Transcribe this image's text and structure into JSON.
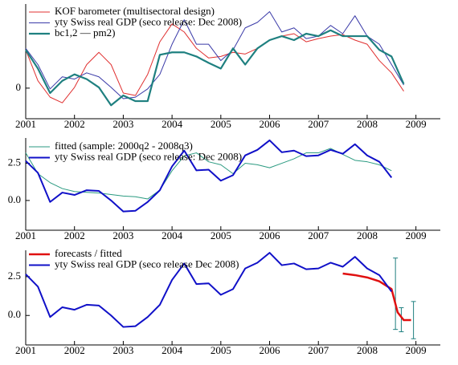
{
  "chart_data": [
    {
      "type": "line",
      "xlim": [
        2001,
        2009.5
      ],
      "xticks": [
        2001,
        2002,
        2003,
        2004,
        2005,
        2006,
        2007,
        2008,
        2009
      ],
      "ylim": [
        -2,
        5.5
      ],
      "yticks": [
        0
      ],
      "series": [
        {
          "name": "KOF barometer (multisectoral design)",
          "color": "#e03030",
          "line_width": 1,
          "x": [
            2001,
            2001.25,
            2001.5,
            2001.75,
            2002,
            2002.25,
            2002.5,
            2002.75,
            2003,
            2003.25,
            2003.5,
            2003.75,
            2004,
            2004.25,
            2004.5,
            2004.75,
            2005,
            2005.25,
            2005.5,
            2005.75,
            2006,
            2006.25,
            2006.5,
            2006.75,
            2007,
            2007.25,
            2007.5,
            2007.75,
            2008,
            2008.25,
            2008.5,
            2008.75
          ],
          "values": [
            2.5,
            0.48,
            -0.59,
            -0.96,
            0.05,
            1.54,
            2.34,
            1.54,
            -0.32,
            -0.48,
            0.9,
            3.03,
            4.2,
            3.67,
            2.6,
            1.97,
            2.07,
            2.34,
            2.23,
            2.6,
            3.14,
            3.4,
            3.56,
            3.03,
            3.24,
            3.4,
            3.5,
            3.14,
            2.87,
            1.8,
            1.0,
            -0.2
          ]
        },
        {
          "name": "yty Swiss real GDP (seco release: Dec 2008)",
          "color": "#3a3aa8",
          "line_width": 1,
          "x": [
            2001,
            2001.25,
            2001.5,
            2001.75,
            2002,
            2002.25,
            2002.5,
            2002.75,
            2003,
            2003.25,
            2003.5,
            2003.75,
            2004,
            2004.25,
            2004.5,
            2004.75,
            2005,
            2005.25,
            2005.5,
            2005.75,
            2006,
            2006.25,
            2006.5,
            2006.75,
            2007,
            2007.25,
            2007.5,
            2007.75,
            2008,
            2008.25,
            2008.5,
            2008.75
          ],
          "values": [
            2.6,
            1.54,
            -0.05,
            0.74,
            0.59,
            1.0,
            0.74,
            0.05,
            -0.69,
            -0.59,
            -0.05,
            0.9,
            2.87,
            4.47,
            2.87,
            2.87,
            1.8,
            2.5,
            3.94,
            4.3,
            5.0,
            3.67,
            3.94,
            3.24,
            3.4,
            4.1,
            3.56,
            4.73,
            3.4,
            2.87,
            1.54,
            0.2
          ]
        },
        {
          "name": "bc1,2 — pm2)",
          "color": "#1f8080",
          "line_width": 2.2,
          "x": [
            2001,
            2001.25,
            2001.5,
            2001.75,
            2002,
            2002.25,
            2002.5,
            2002.75,
            2003,
            2003.25,
            2003.5,
            2003.75,
            2004,
            2004.25,
            2004.5,
            2004.75,
            2005,
            2005.25,
            2005.5,
            2005.75,
            2006,
            2006.25,
            2006.5,
            2006.75,
            2007,
            2007.25,
            2007.5,
            2007.75,
            2008,
            2008.25,
            2008.5,
            2008.75
          ],
          "values": [
            2.5,
            1.28,
            -0.32,
            0.48,
            0.9,
            0.59,
            0.05,
            -1.12,
            -0.48,
            -0.85,
            -0.85,
            2.18,
            2.34,
            2.34,
            2.07,
            1.65,
            1.28,
            2.6,
            1.54,
            2.6,
            3.14,
            3.4,
            3.14,
            3.56,
            3.4,
            3.78,
            3.4,
            3.4,
            3.4,
            2.5,
            2.07,
            0.27
          ]
        }
      ]
    },
    {
      "type": "line",
      "xlim": [
        2001,
        2009.5
      ],
      "xticks": [
        2001,
        2002,
        2003,
        2004,
        2005,
        2006,
        2007,
        2008,
        2009
      ],
      "ylim": [
        -2,
        4.2
      ],
      "yticks": [
        {
          "value": 0,
          "label": "0.0"
        },
        {
          "value": 2.5,
          "label": "2.5"
        }
      ],
      "series": [
        {
          "name": "fitted (sample: 2000q2 - 2008q3)",
          "color": "#2a9a80",
          "line_width": 1,
          "x": [
            2001,
            2001.25,
            2001.5,
            2001.75,
            2002,
            2002.25,
            2002.5,
            2002.75,
            2003,
            2003.25,
            2003.5,
            2003.75,
            2004,
            2004.25,
            2004.5,
            2004.75,
            2005,
            2005.25,
            2005.5,
            2005.75,
            2006,
            2006.25,
            2006.5,
            2006.75,
            2007,
            2007.25,
            2007.5,
            2007.75,
            2008,
            2008.25,
            2008.5
          ],
          "values": [
            3.2,
            1.8,
            1.2,
            0.8,
            0.6,
            0.55,
            0.5,
            0.4,
            0.3,
            0.25,
            0.1,
            0.7,
            2.0,
            3.0,
            3.2,
            2.6,
            2.4,
            1.8,
            2.5,
            2.4,
            2.2,
            2.5,
            2.8,
            3.2,
            3.2,
            3.5,
            3.1,
            2.7,
            2.6,
            2.4,
            2.0
          ]
        },
        {
          "name": "yty Swiss real GDP (seco release: Dec 2008)",
          "color": "#1010c8",
          "line_width": 2,
          "x": [
            2001,
            2001.25,
            2001.5,
            2001.75,
            2002,
            2002.25,
            2002.5,
            2002.75,
            2003,
            2003.25,
            2003.5,
            2003.75,
            2004,
            2004.25,
            2004.5,
            2004.75,
            2005,
            2005.25,
            2005.5,
            2005.75,
            2006,
            2006.25,
            2006.5,
            2006.75,
            2007,
            2007.25,
            2007.5,
            2007.75,
            2008,
            2008.25,
            2008.5
          ],
          "values": [
            2.66,
            1.86,
            -0.1,
            0.53,
            0.37,
            0.69,
            0.64,
            0.0,
            -0.74,
            -0.69,
            -0.1,
            0.69,
            2.29,
            3.35,
            2.02,
            2.07,
            1.33,
            1.7,
            3.03,
            3.4,
            4.04,
            3.24,
            3.35,
            2.98,
            3.03,
            3.4,
            3.14,
            3.78,
            3.03,
            2.6,
            1.54
          ]
        }
      ]
    },
    {
      "type": "line",
      "xlim": [
        2001,
        2009.5
      ],
      "xticks": [
        2001,
        2002,
        2003,
        2004,
        2005,
        2006,
        2007,
        2008,
        2009
      ],
      "ylim": [
        -1.9,
        4.2
      ],
      "yticks": [
        {
          "value": 0,
          "label": "0.0"
        },
        {
          "value": 2.5,
          "label": "2.5"
        }
      ],
      "series": [
        {
          "name": "forecasts / fitted",
          "color": "#e01010",
          "line_width": 2.5,
          "x": [
            2007.5,
            2007.75,
            2008,
            2008.25,
            2008.5,
            2008.625,
            2008.75,
            2008.9
          ],
          "values": [
            2.7,
            2.6,
            2.45,
            2.2,
            1.7,
            0.2,
            -0.3,
            -0.3
          ]
        },
        {
          "name": "yty Swiss real GDP (seco release Dec 2008)",
          "color": "#1010c8",
          "line_width": 2,
          "x": [
            2001,
            2001.25,
            2001.5,
            2001.75,
            2002,
            2002.25,
            2002.5,
            2002.75,
            2003,
            2003.25,
            2003.5,
            2003.75,
            2004,
            2004.25,
            2004.5,
            2004.75,
            2005,
            2005.25,
            2005.5,
            2005.75,
            2006,
            2006.25,
            2006.5,
            2006.75,
            2007,
            2007.25,
            2007.5,
            2007.75,
            2008,
            2008.25,
            2008.5
          ],
          "values": [
            2.66,
            1.86,
            -0.1,
            0.53,
            0.37,
            0.69,
            0.64,
            0.0,
            -0.74,
            -0.69,
            -0.1,
            0.69,
            2.29,
            3.35,
            2.02,
            2.07,
            1.33,
            1.7,
            3.03,
            3.4,
            4.04,
            3.24,
            3.35,
            2.98,
            3.03,
            3.4,
            3.14,
            3.78,
            3.03,
            2.6,
            1.54
          ]
        }
      ],
      "error_bars": {
        "color": "#1f8080",
        "x": [
          2008.58,
          2008.7,
          2008.95
        ],
        "low": [
          -0.9,
          -1.05,
          -1.5
        ],
        "high": [
          3.7,
          0.5,
          0.9
        ]
      }
    }
  ]
}
